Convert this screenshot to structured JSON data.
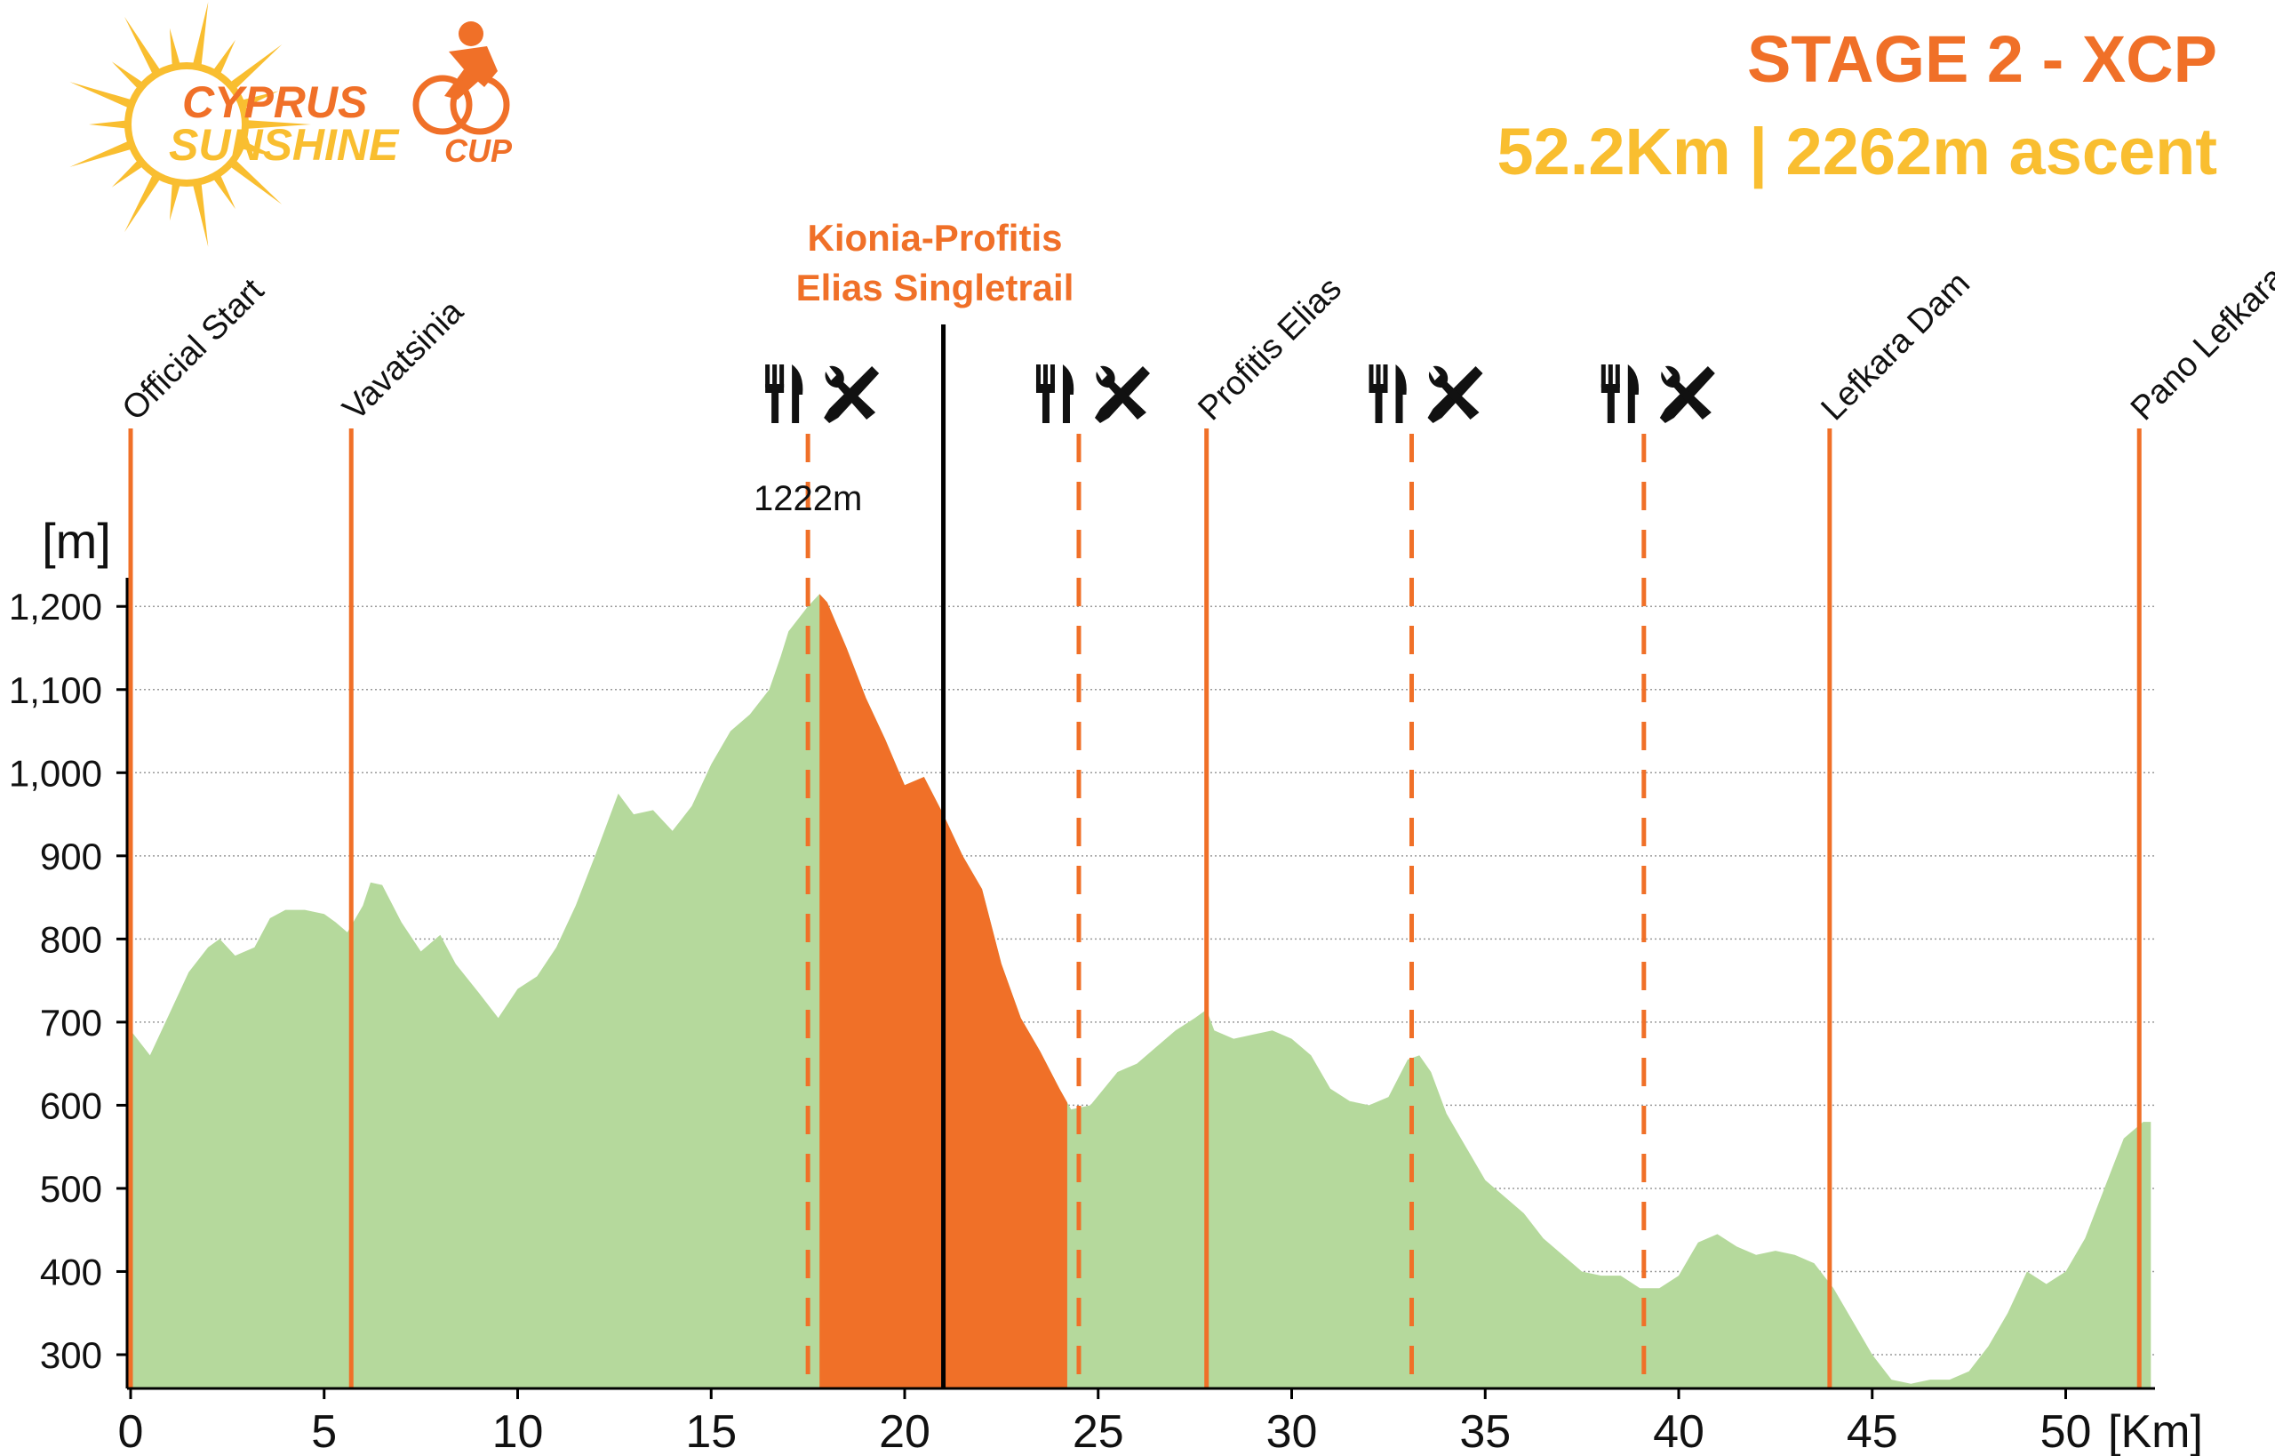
{
  "logo": {
    "line1": "CYPRUS",
    "line2": "SUNSHINE",
    "line3": "CUP"
  },
  "header": {
    "stage": "STAGE 2 - XCP",
    "summary": "52.2Km | 2262m ascent"
  },
  "colors": {
    "orange": "#F07028",
    "yellow": "#F9BE30",
    "green": "#B5D99C",
    "grid": "#9a9a9a"
  },
  "chart_data": {
    "type": "area",
    "xlabel": "[Km]",
    "ylabel": "[m]",
    "xlim": [
      0,
      52.2
    ],
    "ylim": [
      260,
      1220
    ],
    "xticks": [
      0,
      5,
      10,
      15,
      20,
      25,
      30,
      35,
      40,
      45,
      50
    ],
    "yticks": [
      300,
      400,
      500,
      600,
      700,
      800,
      900,
      1000,
      1100,
      1200
    ],
    "ytick_labels": [
      "300",
      "400",
      "500",
      "600",
      "700",
      "800",
      "900",
      "1,000",
      "1,100",
      "1,200"
    ],
    "grid": "horizontal dotted",
    "profile": [
      [
        0,
        690
      ],
      [
        0.5,
        660
      ],
      [
        1,
        710
      ],
      [
        1.5,
        760
      ],
      [
        2,
        790
      ],
      [
        2.3,
        800
      ],
      [
        2.7,
        780
      ],
      [
        3.2,
        790
      ],
      [
        3.6,
        825
      ],
      [
        4,
        835
      ],
      [
        4.5,
        835
      ],
      [
        5,
        830
      ],
      [
        5.3,
        820
      ],
      [
        5.6,
        808
      ],
      [
        6,
        840
      ],
      [
        6.2,
        868
      ],
      [
        6.5,
        865
      ],
      [
        7,
        820
      ],
      [
        7.5,
        785
      ],
      [
        8,
        805
      ],
      [
        8.4,
        770
      ],
      [
        9,
        735
      ],
      [
        9.5,
        705
      ],
      [
        10,
        740
      ],
      [
        10.5,
        755
      ],
      [
        11,
        790
      ],
      [
        11.5,
        840
      ],
      [
        12,
        900
      ],
      [
        12.6,
        975
      ],
      [
        13,
        950
      ],
      [
        13.5,
        955
      ],
      [
        14,
        930
      ],
      [
        14.5,
        960
      ],
      [
        15,
        1010
      ],
      [
        15.5,
        1050
      ],
      [
        16,
        1070
      ],
      [
        16.5,
        1100
      ],
      [
        16.8,
        1140
      ],
      [
        17,
        1170
      ],
      [
        17.5,
        1200
      ],
      [
        17.8,
        1215
      ],
      [
        18,
        1205
      ],
      [
        18.5,
        1150
      ],
      [
        19,
        1090
      ],
      [
        19.5,
        1040
      ],
      [
        20,
        985
      ],
      [
        20.5,
        995
      ],
      [
        21,
        950
      ],
      [
        21.5,
        900
      ],
      [
        22,
        860
      ],
      [
        22.5,
        770
      ],
      [
        23,
        705
      ],
      [
        23.5,
        665
      ],
      [
        24,
        620
      ],
      [
        24.3,
        595
      ],
      [
        24.8,
        600
      ],
      [
        25.5,
        640
      ],
      [
        26,
        650
      ],
      [
        26.5,
        670
      ],
      [
        27,
        690
      ],
      [
        27.5,
        705
      ],
      [
        27.8,
        715
      ],
      [
        28,
        690
      ],
      [
        28.5,
        680
      ],
      [
        29,
        685
      ],
      [
        29.5,
        690
      ],
      [
        30,
        680
      ],
      [
        30.5,
        660
      ],
      [
        31,
        620
      ],
      [
        31.5,
        605
      ],
      [
        32,
        600
      ],
      [
        32.5,
        610
      ],
      [
        33,
        655
      ],
      [
        33.3,
        660
      ],
      [
        33.6,
        640
      ],
      [
        34,
        590
      ],
      [
        34.5,
        550
      ],
      [
        35,
        510
      ],
      [
        35.5,
        490
      ],
      [
        36,
        470
      ],
      [
        36.5,
        440
      ],
      [
        37,
        420
      ],
      [
        37.5,
        400
      ],
      [
        38,
        395
      ],
      [
        38.5,
        395
      ],
      [
        39,
        380
      ],
      [
        39.5,
        380
      ],
      [
        40,
        395
      ],
      [
        40.5,
        435
      ],
      [
        41,
        445
      ],
      [
        41.5,
        430
      ],
      [
        42,
        420
      ],
      [
        42.5,
        425
      ],
      [
        43,
        420
      ],
      [
        43.5,
        410
      ],
      [
        44,
        380
      ],
      [
        44.5,
        340
      ],
      [
        45,
        300
      ],
      [
        45.5,
        270
      ],
      [
        46,
        265
      ],
      [
        46.5,
        270
      ],
      [
        47,
        270
      ],
      [
        47.5,
        280
      ],
      [
        48,
        310
      ],
      [
        48.5,
        350
      ],
      [
        49,
        400
      ],
      [
        49.5,
        385
      ],
      [
        50,
        400
      ],
      [
        50.5,
        440
      ],
      [
        51,
        500
      ],
      [
        51.5,
        560
      ],
      [
        52,
        580
      ],
      [
        52.2,
        580
      ]
    ],
    "highlight_segment": {
      "name": "Kionia-Profitis Elias Singletrail",
      "label_lines": [
        "Kionia-Profitis",
        "Elias Singletrail"
      ],
      "from_km": 17.8,
      "to_km": 24.2,
      "marker_km": 21
    },
    "peak_annotation": {
      "text": "1222m",
      "km": 17.5
    },
    "locations": [
      {
        "name": "Official Start",
        "km": 0
      },
      {
        "name": "Vavatsinia",
        "km": 5.7
      },
      {
        "name": "Profitis Elias",
        "km": 27.8
      },
      {
        "name": "Lefkara Dam",
        "km": 43.9
      },
      {
        "name": "Pano Lefkara",
        "km": 51.9
      }
    ],
    "feed_tech_zones": [
      {
        "km": 17.5,
        "icons": [
          "fork-knife-icon",
          "wrench-screwdriver-icon"
        ]
      },
      {
        "km": 24.5,
        "icons": [
          "fork-knife-icon",
          "wrench-screwdriver-icon"
        ]
      },
      {
        "km": 33.1,
        "icons": [
          "fork-knife-icon",
          "wrench-screwdriver-icon"
        ]
      },
      {
        "km": 39.1,
        "icons": [
          "fork-knife-icon",
          "wrench-screwdriver-icon"
        ]
      }
    ]
  }
}
